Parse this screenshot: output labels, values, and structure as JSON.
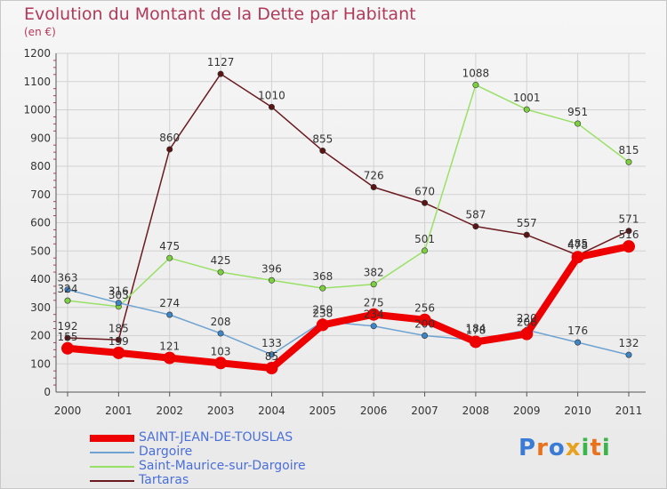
{
  "header": {
    "title": "Evolution du Montant de la Dette par Habitant",
    "unit": "(en €)"
  },
  "logo": {
    "letters": [
      "P",
      "r",
      "o",
      "x",
      "i",
      "t",
      "i"
    ],
    "colors": [
      "#3a7bd5",
      "#e8731c",
      "#3a7bd5",
      "#e8a11c",
      "#3ab54a",
      "#e8731c",
      "#3ab54a"
    ]
  },
  "chart_data": {
    "type": "line",
    "title": "Evolution du Montant de la Dette par Habitant",
    "ylabel": "(en €)",
    "xlabel": "",
    "ylim": [
      0,
      1200
    ],
    "ytick_step": 100,
    "grid": true,
    "categories": [
      "2000",
      "2001",
      "2002",
      "2003",
      "2004",
      "2005",
      "2006",
      "2007",
      "2008",
      "2009",
      "2010",
      "2011"
    ],
    "series": [
      {
        "name": "Tartaras",
        "color": "#6b1a1f",
        "marker": "#5a1416",
        "values": [
          192,
          185,
          860,
          1127,
          1010,
          855,
          726,
          670,
          587,
          557,
          485,
          571
        ],
        "labels": [
          "192",
          "185",
          "860",
          "1127",
          "1010",
          "855",
          "726",
          "670",
          "587",
          "557",
          "485",
          "571"
        ]
      },
      {
        "name": "Saint-Maurice-sur-Dargoire",
        "color": "#99e066",
        "marker": "#7ccf3f",
        "values": [
          324,
          303,
          475,
          425,
          396,
          368,
          382,
          501,
          1088,
          1001,
          951,
          815
        ],
        "labels": [
          "324",
          "303",
          "475",
          "425",
          "396",
          "368",
          "382",
          "501",
          "1088",
          "1001",
          "951",
          "815"
        ]
      },
      {
        "name": "Dargoire",
        "color": "#6fa3d2",
        "marker": "#3d85c6",
        "values": [
          363,
          316,
          274,
          208,
          133,
          250,
          234,
          200,
          184,
          220,
          176,
          132
        ],
        "labels": [
          "363",
          "316",
          "274",
          "208",
          "133",
          "250",
          "234",
          "200",
          "184",
          "220",
          "176",
          "132"
        ]
      },
      {
        "name": "SAINT-JEAN-DE-TOUSLAS",
        "color": "#ee0000",
        "marker": "#ee0000",
        "values": [
          155,
          139,
          121,
          103,
          85,
          238,
          275,
          256,
          178,
          206,
          478,
          516
        ],
        "labels": [
          "155",
          "139",
          "121",
          "103",
          "85",
          "238",
          "275",
          "256",
          "178",
          "206",
          "478",
          "516"
        ]
      }
    ],
    "legend": {
      "placement": "bottom-left",
      "entries": [
        {
          "name": "SAINT-JEAN-DE-TOUSLAS",
          "color": "#ee0000",
          "text_color": "#4a6fd8"
        },
        {
          "name": "Dargoire",
          "color": "#6fa3d2",
          "text_color": "#4a6fd8"
        },
        {
          "name": "Saint-Maurice-sur-Dargoire",
          "color": "#99e066",
          "text_color": "#4a6fd8"
        },
        {
          "name": "Tartaras",
          "color": "#6b1a1f",
          "text_color": "#4a6fd8"
        }
      ]
    }
  }
}
